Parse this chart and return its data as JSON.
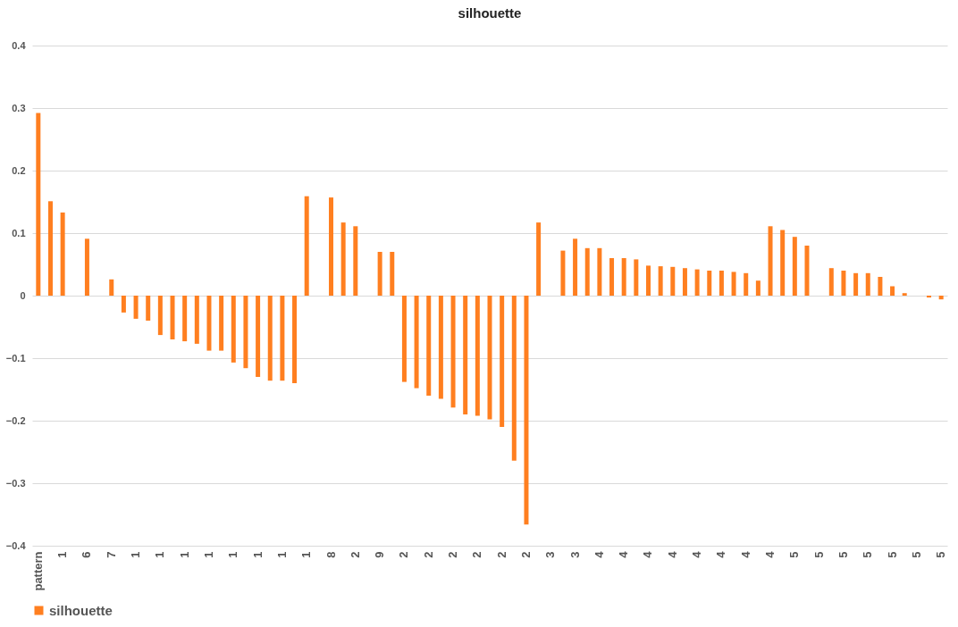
{
  "chart_data": {
    "type": "bar",
    "title": "silhouette",
    "categories": [
      "pattern",
      null,
      "1",
      null,
      "6",
      null,
      "7",
      null,
      "1",
      null,
      "1",
      null,
      "1",
      null,
      "1",
      null,
      "1",
      null,
      "1",
      null,
      "1",
      null,
      "1",
      null,
      "8",
      null,
      "2",
      null,
      "9",
      null,
      "2",
      null,
      "2",
      null,
      "2",
      null,
      "2",
      null,
      "2",
      null,
      "2",
      null,
      "3",
      null,
      "3",
      null,
      "4",
      null,
      "4",
      null,
      "4",
      null,
      "4",
      null,
      "4",
      null,
      "4",
      null,
      "4",
      null,
      "4",
      null,
      "5",
      null,
      "5",
      null,
      "5",
      null,
      "5",
      null,
      "5",
      null,
      "5",
      null,
      "5"
    ],
    "series": [
      {
        "name": "silhouette",
        "color": "#ff7f20",
        "values": [
          0.292,
          0.151,
          0.133,
          null,
          0.091,
          null,
          0.026,
          -0.027,
          -0.037,
          -0.04,
          -0.063,
          -0.07,
          -0.073,
          -0.077,
          -0.088,
          -0.088,
          -0.107,
          -0.116,
          -0.13,
          -0.136,
          -0.136,
          -0.14,
          0.159,
          null,
          0.157,
          0.117,
          0.111,
          null,
          0.07,
          0.07,
          -0.138,
          -0.148,
          -0.16,
          -0.165,
          -0.179,
          -0.19,
          -0.192,
          -0.198,
          -0.21,
          -0.264,
          -0.366,
          0.117,
          null,
          0.072,
          0.091,
          0.076,
          0.076,
          0.06,
          0.06,
          0.058,
          0.048,
          0.047,
          0.046,
          0.044,
          0.042,
          0.04,
          0.04,
          0.038,
          0.036,
          0.024,
          0.111,
          0.105,
          0.094,
          0.08,
          null,
          0.044,
          0.04,
          0.036,
          0.036,
          0.03,
          0.015,
          0.004,
          null,
          -0.003,
          -0.006
        ]
      }
    ],
    "ylim": [
      -0.4,
      0.4
    ],
    "yticks": [
      -0.4,
      -0.3,
      -0.2,
      -0.1,
      {
        "value": 0,
        "label": "0"
      },
      0.1,
      0.2,
      0.3,
      0.4
    ],
    "grid": "y",
    "legend": "bottom"
  }
}
